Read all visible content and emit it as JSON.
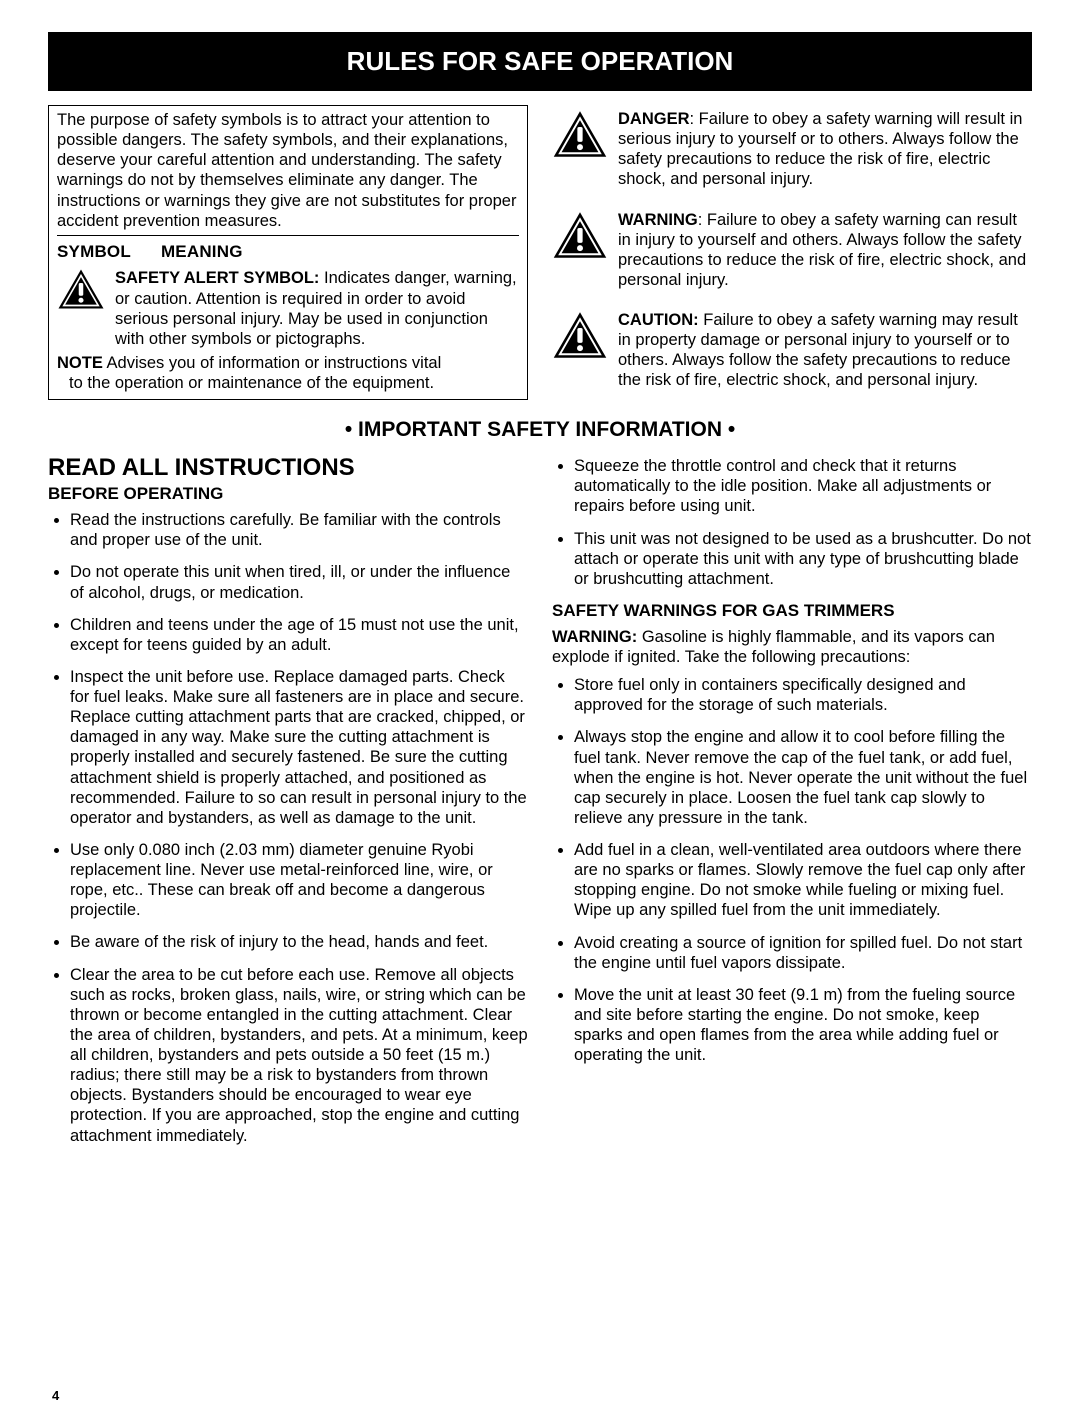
{
  "colors": {
    "bg": "#ffffff",
    "text": "#000000",
    "titlebar_bg": "#000000",
    "titlebar_fg": "#ffffff"
  },
  "title": "RULES FOR SAFE OPERATION",
  "intro": "The purpose of safety symbols is to attract your attention to possible dangers. The safety symbols, and their explanations, deserve your careful attention and understanding. The safety warnings do not by themselves eliminate any danger. The instructions or warnings they give are not substitutes for proper accident prevention measures.",
  "symbol_heading_a": "SYMBOL",
  "symbol_heading_b": "MEANING",
  "safety_alert_label": "SAFETY ALERT SYMBOL:",
  "safety_alert_text": " Indicates danger, warning, or caution. Attention is required in order to avoid serious personal injury. May be used in conjunction with other symbols or pictographs.",
  "note_label": "NOTE",
  "note_text_line1": " Advises you of information or instructions vital",
  "note_text_line2": "to the operation or maintenance of the equipment.",
  "defs": [
    {
      "label": "DANGER",
      "text": ": Failure to obey a safety warning will result in serious injury to yourself or to others. Always follow the safety precautions to reduce the risk of fire, electric shock, and personal injury."
    },
    {
      "label": "WARNING",
      "text": ": Failure to obey a safety warning can result in injury to yourself and others. Always follow the safety precautions to reduce the risk of fire, electric shock, and personal injury."
    },
    {
      "label": "CAUTION:",
      "text": " Failure to obey a safety warning may result in property damage or personal injury to yourself or to others. Always follow the safety precautions to reduce the risk of fire, electric shock, and personal injury."
    }
  ],
  "important_heading": "• IMPORTANT SAFETY INFORMATION •",
  "read_all": "READ ALL INSTRUCTIONS",
  "before_op": "BEFORE OPERATING",
  "before_op_bullets": [
    "Read the instructions carefully. Be familiar with the controls and proper use of the unit.",
    "Do not operate this unit when tired, ill, or under the influence of alcohol, drugs, or medication.",
    "Children and teens under the age of 15 must not use the unit, except for teens guided by an adult.",
    "Inspect the unit before use. Replace damaged parts. Check for fuel leaks. Make sure all fasteners are in place and secure. Replace cutting attachment parts that are cracked, chipped, or damaged in any way. Make sure the cutting attachment is properly installed and securely fastened. Be sure the cutting attachment shield is properly attached, and positioned as recommended. Failure to so can result in personal injury to the operator and bystanders, as well as damage to the unit.",
    "Use only 0.080 inch (2.03 mm) diameter genuine Ryobi replacement line. Never use metal-reinforced line, wire, or rope, etc.. These can break off and become a dangerous projectile.",
    "Be aware of the risk of injury to the head, hands and feet.",
    "Clear the area to be cut before each use. Remove all objects such as rocks, broken glass, nails, wire, or string which can be thrown or become entangled in the cutting attachment. Clear the area of children, bystanders, and pets. At a minimum, keep all children, bystanders and pets outside a 50 feet (15 m.) radius; there still may be a risk to bystanders from thrown objects. Bystanders should be encouraged to wear eye protection. If you are approached, stop the engine and cutting attachment immediately."
  ],
  "right_top_bullets": [
    "Squeeze the throttle control and check that it returns automatically to the idle position. Make all adjustments or repairs before using unit.",
    "This unit was not designed to be used as a brushcutter. Do not attach or operate this unit with any type of brushcutting blade or brushcutting attachment."
  ],
  "gas_heading": "SAFETY WARNINGS FOR GAS TRIMMERS",
  "gas_warning_label": "WARNING:",
  "gas_warning_text": " Gasoline is highly flammable, and its vapors can explode if ignited. Take the following precautions:",
  "gas_bullets": [
    "Store fuel only in containers specifically designed and approved for the storage of such materials.",
    "Always stop the engine and allow it to cool before filling the fuel tank. Never remove the cap of the fuel tank, or add fuel, when the engine is hot. Never operate the unit without the fuel cap securely in place. Loosen the fuel tank cap slowly to relieve any pressure in the tank.",
    "Add fuel in a clean, well-ventilated area outdoors where there are no sparks or flames. Slowly remove the fuel cap only after stopping engine. Do not smoke while fueling or mixing fuel. Wipe up any spilled fuel from the unit immediately.",
    "Avoid creating a source of ignition for spilled fuel. Do not start the engine until fuel vapors dissipate.",
    "Move the unit at least 30 feet (9.1 m) from the fueling source and site before starting the engine. Do not smoke, keep sparks and open flames from the area while adding fuel or operating the unit."
  ],
  "page_number": "4"
}
